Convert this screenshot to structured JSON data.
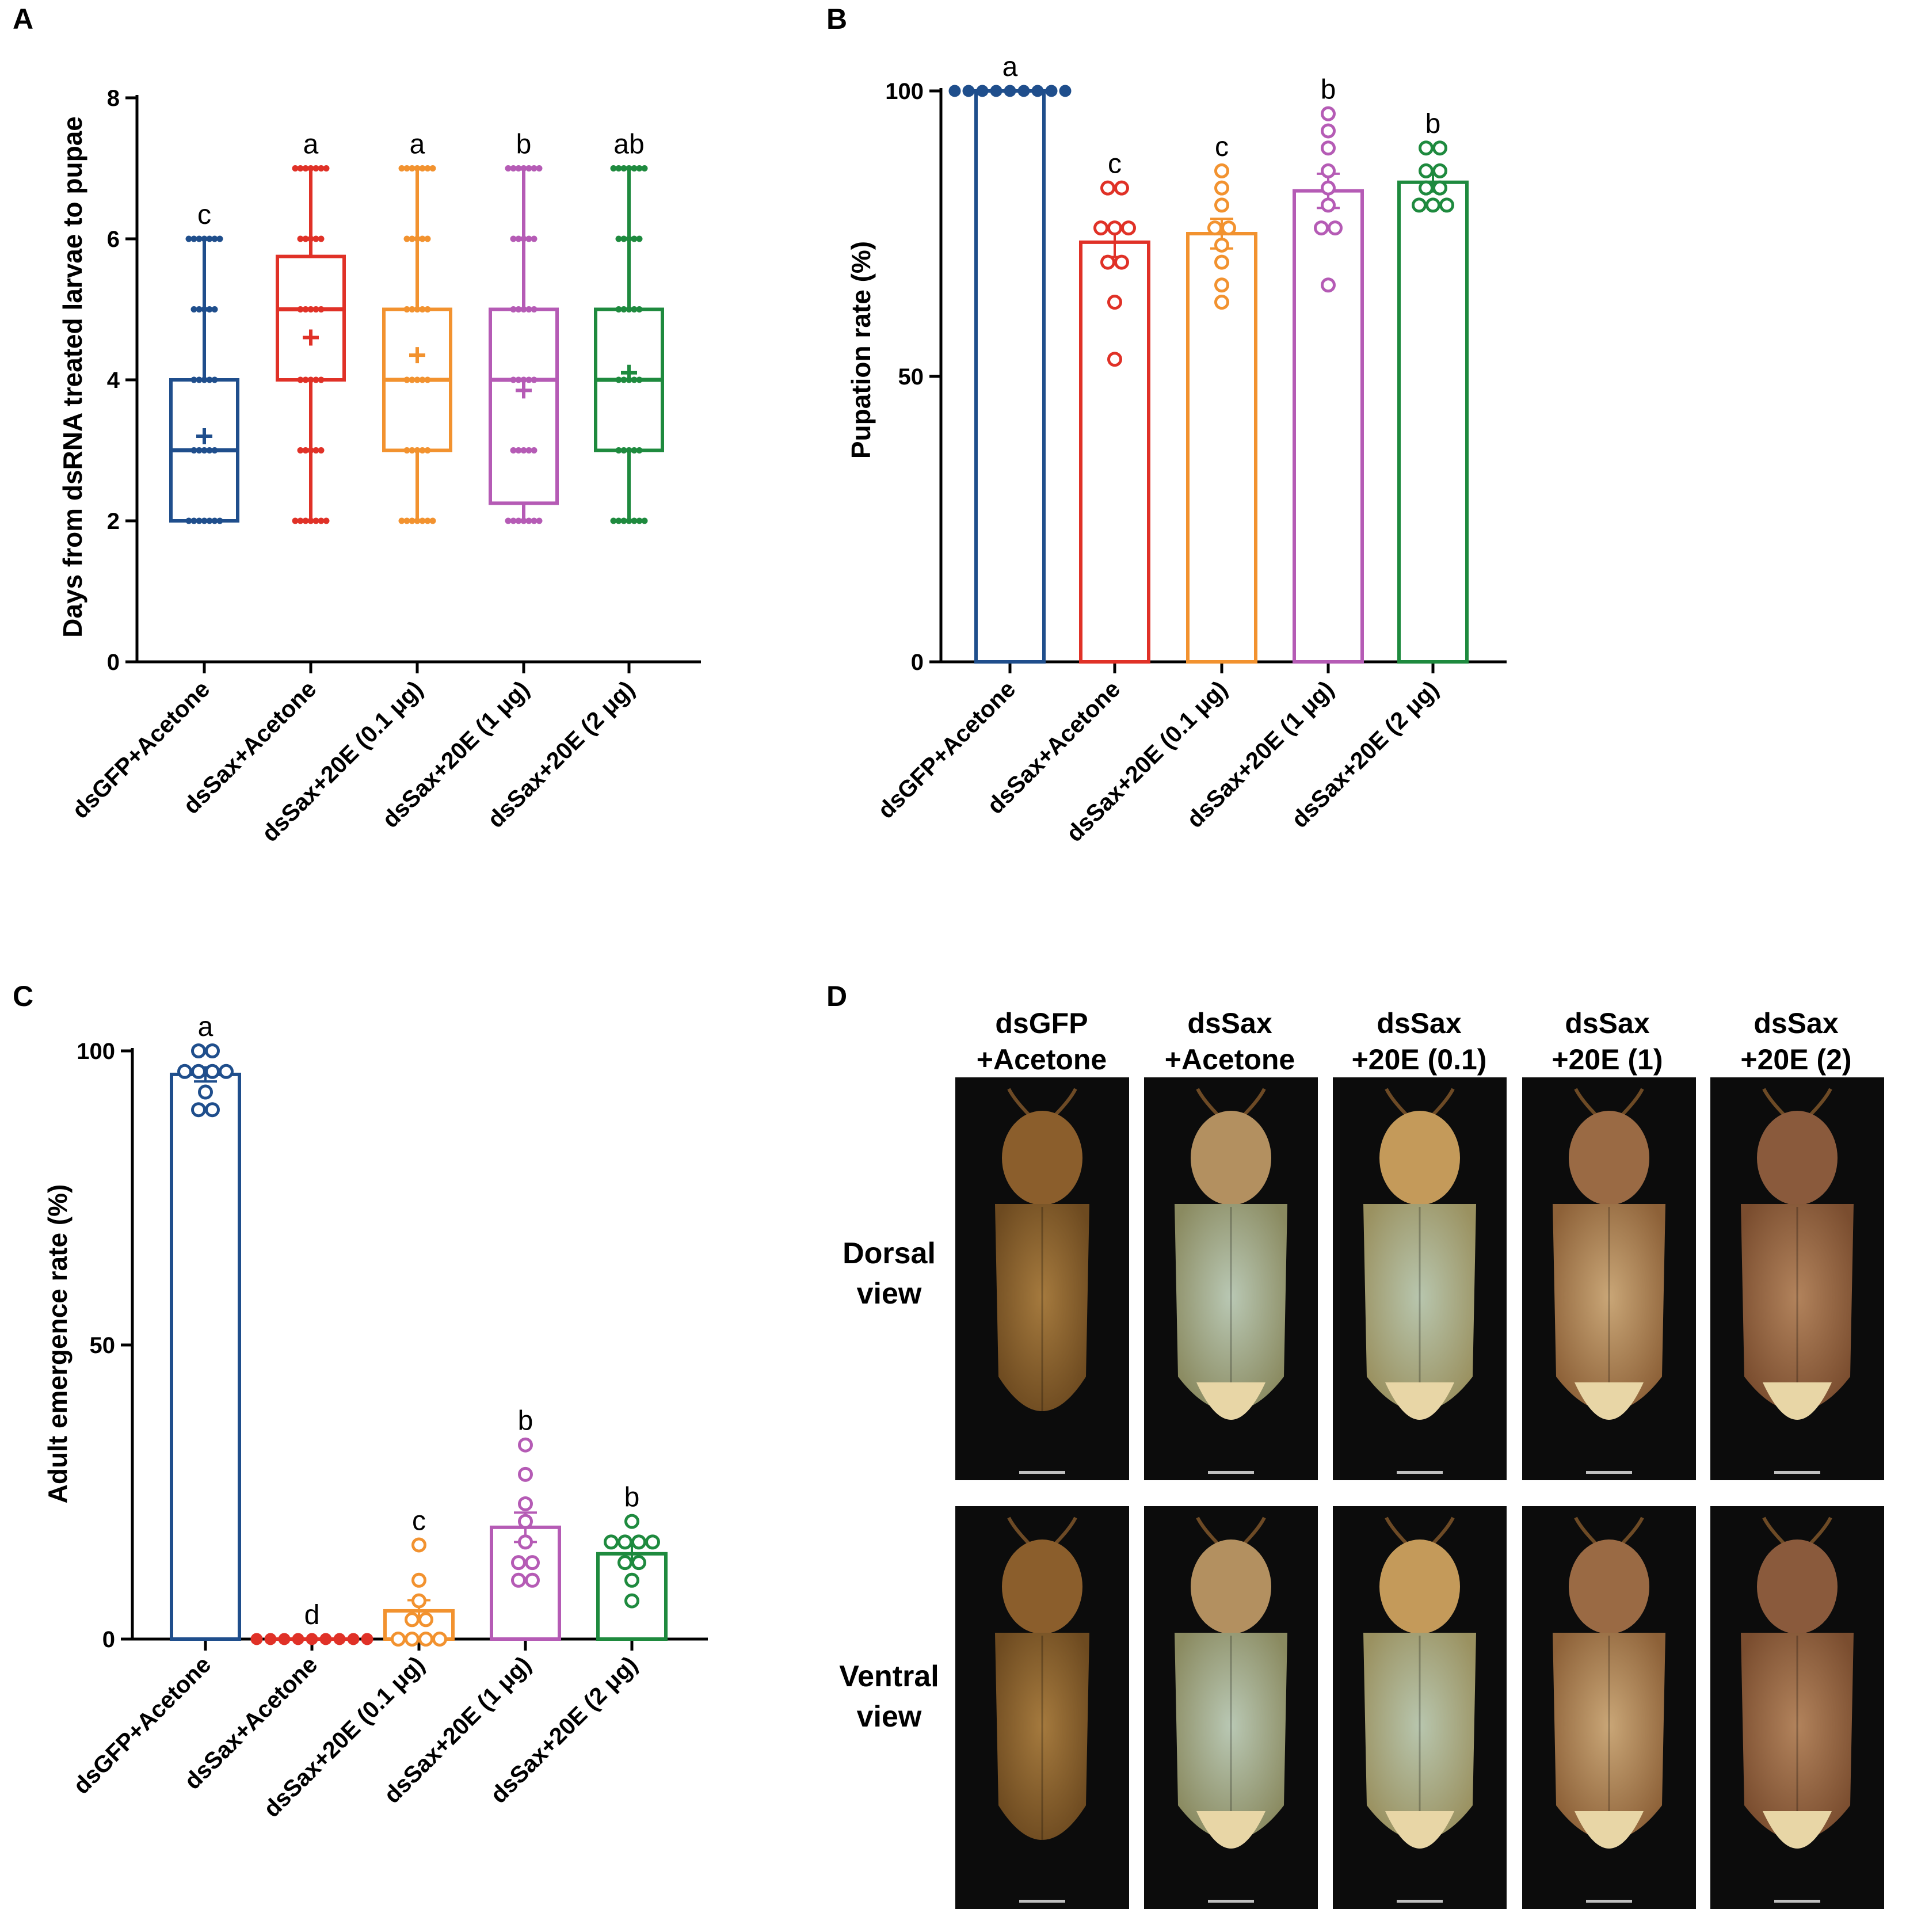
{
  "chart_data": [
    {
      "panel": "A",
      "type": "box",
      "ylabel": "Days from dsRNA treated larvae to pupae",
      "ylim": [
        0,
        8
      ],
      "yticks": [
        0,
        2,
        4,
        6,
        8
      ],
      "categories": [
        "dsGFP+Acetone",
        "dsSax+Acetone",
        "dsSax+20E (0.1 μg)",
        "dsSax+20E (1 μg)",
        "dsSax+20E (2 μg)"
      ],
      "colors": [
        "#1f4e8c",
        "#e03127",
        "#f2922f",
        "#b55bb5",
        "#1e8a3e"
      ],
      "boxes": [
        {
          "min": 2,
          "q1": 2,
          "median": 3,
          "q3": 4,
          "max": 6,
          "mean": 3.2,
          "points": [
            2,
            3,
            4,
            5,
            6
          ]
        },
        {
          "min": 2,
          "q1": 4,
          "median": 5,
          "q3": 5.75,
          "max": 7,
          "mean": 4.6,
          "points": [
            2,
            3,
            4,
            5,
            6,
            7
          ]
        },
        {
          "min": 2,
          "q1": 3,
          "median": 4,
          "q3": 5,
          "max": 7,
          "mean": 4.35,
          "points": [
            2,
            3,
            4,
            5,
            6,
            7
          ]
        },
        {
          "min": 2,
          "q1": 2.25,
          "median": 4,
          "q3": 5,
          "max": 7,
          "mean": 3.85,
          "points": [
            2,
            3,
            4,
            5,
            6,
            7
          ]
        },
        {
          "min": 2,
          "q1": 3,
          "median": 4,
          "q3": 5,
          "max": 7,
          "mean": 4.1,
          "points": [
            2,
            3,
            4,
            5,
            6,
            7
          ]
        }
      ],
      "significance": [
        "c",
        "a",
        "a",
        "b",
        "ab"
      ]
    },
    {
      "panel": "B",
      "type": "bar",
      "ylabel": "Pupation rate (%)",
      "ylim": [
        0,
        100
      ],
      "yticks": [
        0,
        50,
        100
      ],
      "categories": [
        "dsGFP+Acetone",
        "dsSax+Acetone",
        "dsSax+20E (0.1 μg)",
        "dsSax+20E (1 μg)",
        "dsSax+20E (2 μg)"
      ],
      "colors": [
        "#1f4e8c",
        "#e03127",
        "#f2922f",
        "#b55bb5",
        "#1e8a3e"
      ],
      "values": [
        100,
        73.5,
        75,
        82.5,
        84
      ],
      "sem": [
        0,
        2.6,
        2.6,
        3,
        1.6
      ],
      "points": [
        [
          100,
          100,
          100,
          100,
          100,
          100,
          100,
          100,
          100
        ],
        [
          83,
          83,
          76,
          76,
          76,
          70,
          70,
          63,
          53
        ],
        [
          86,
          83,
          80,
          76,
          76,
          73,
          70,
          66,
          63
        ],
        [
          96,
          93,
          90,
          86,
          83,
          80,
          76,
          76,
          66
        ],
        [
          90,
          90,
          86,
          86,
          83,
          83,
          80,
          80,
          80
        ]
      ],
      "significance": [
        "a",
        "c",
        "c",
        "b",
        "b"
      ]
    },
    {
      "panel": "C",
      "type": "bar",
      "ylabel": "Adult emergence rate (%)",
      "ylim": [
        0,
        100
      ],
      "yticks": [
        0,
        50,
        100
      ],
      "categories": [
        "dsGFP+Acetone",
        "dsSax+Acetone",
        "dsSax+20E (0.1 μg)",
        "dsSax+20E (1 μg)",
        "dsSax+20E (2 μg)"
      ],
      "colors": [
        "#1f4e8c",
        "#e03127",
        "#f2922f",
        "#b55bb5",
        "#1e8a3e"
      ],
      "values": [
        96,
        0,
        4.8,
        19,
        14.5
      ],
      "sem": [
        1.2,
        0,
        1.8,
        2.5,
        1.6
      ],
      "points": [
        [
          100,
          100,
          96.5,
          96.5,
          96.5,
          96.5,
          93,
          90,
          90
        ],
        [
          0,
          0,
          0,
          0,
          0,
          0,
          0,
          0,
          0
        ],
        [
          16,
          10,
          6.5,
          3.3,
          3.3,
          0,
          0,
          0,
          0
        ],
        [
          33,
          28,
          23,
          20,
          16.5,
          13,
          13,
          10,
          10
        ],
        [
          20,
          16.5,
          16.5,
          16.5,
          16.5,
          13,
          13,
          10,
          6.5
        ]
      ],
      "significance": [
        "a",
        "d",
        "c",
        "b",
        "b"
      ]
    }
  ],
  "panel_d": {
    "letter": "D",
    "columns": [
      {
        "line1": "dsGFP",
        "line2": "+Acetone"
      },
      {
        "line1": "dsSax",
        "line2": "+Acetone"
      },
      {
        "line1": "dsSax",
        "line2": "+20E (0.1)"
      },
      {
        "line1": "dsSax",
        "line2": "+20E (1)"
      },
      {
        "line1": "dsSax",
        "line2": "+20E (2)"
      }
    ],
    "rows": [
      {
        "line1": "Dorsal",
        "line2": "view"
      },
      {
        "line1": "Ventral",
        "line2": "view"
      }
    ]
  }
}
